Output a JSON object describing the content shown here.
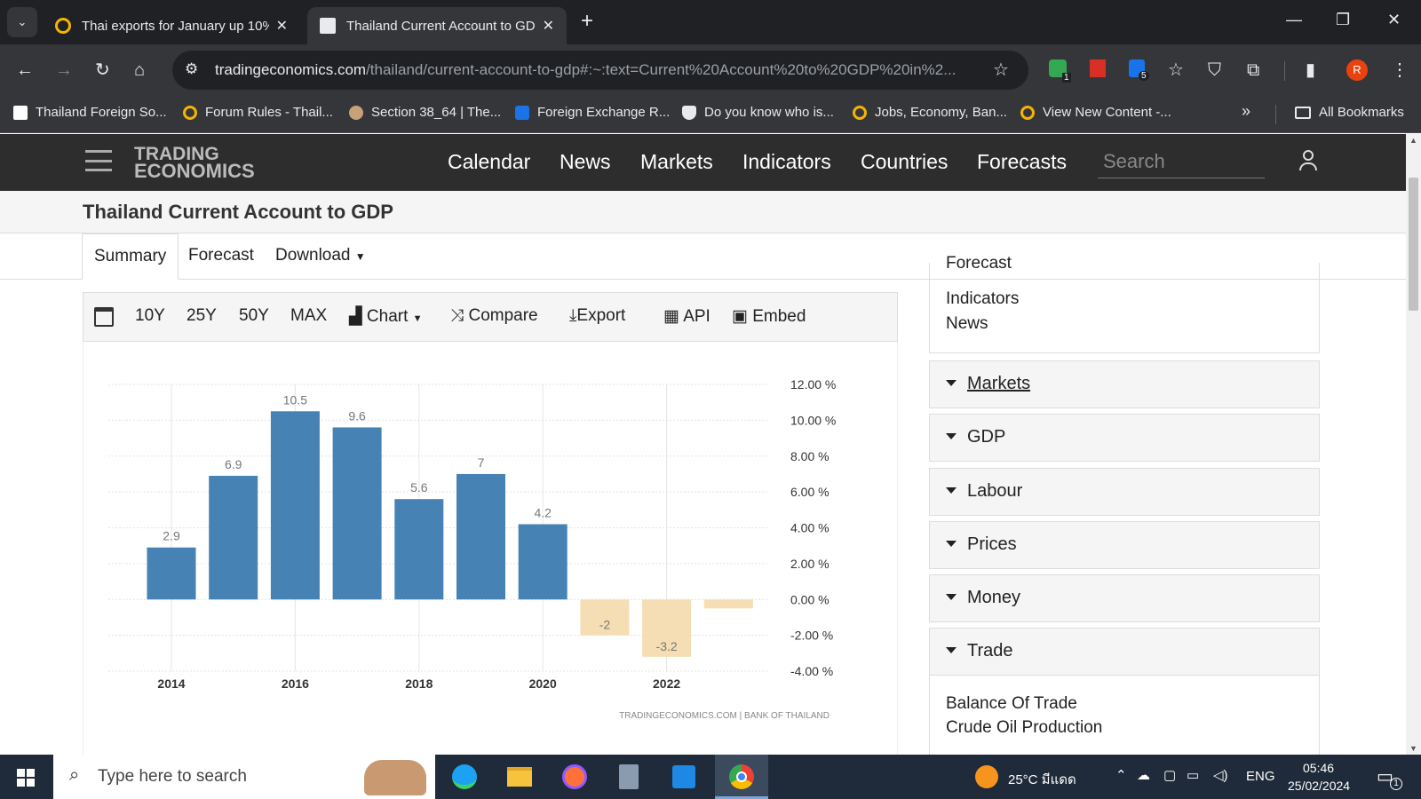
{
  "browser": {
    "tabs": [
      {
        "title": "Thai exports for January up 10%",
        "active": false
      },
      {
        "title": "Thailand Current Account to GD",
        "active": true
      }
    ],
    "new_tab": "+",
    "url_host": "tradingeconomics.com",
    "url_path": "/thailand/current-account-to-gdp#:~:text=Current%20Account%20to%20GDP%20in%2...",
    "extension_badges": [
      "1",
      "5"
    ],
    "profile_initial": "R",
    "bookmarks": [
      "Thailand Foreign So...",
      "Forum Rules - Thail...",
      "Section 38_64 | The...",
      "Foreign Exchange R...",
      "Do you know who is...",
      "Jobs, Economy, Ban...",
      "View New Content -..."
    ],
    "more_bookmarks": "»",
    "all_bookmarks": "All Bookmarks"
  },
  "site": {
    "logo_line1": "TRADING",
    "logo_line2": "ECONOMICS",
    "nav": [
      "Calendar",
      "News",
      "Markets",
      "Indicators",
      "Countries",
      "Forecasts"
    ],
    "search_placeholder": "Search",
    "page_title": "Thailand Current Account to GDP",
    "tabs": [
      "Summary",
      "Forecast",
      "Download"
    ],
    "chart_toolbar": [
      "10Y",
      "25Y",
      "50Y",
      "MAX",
      "Chart",
      "Compare",
      "Export",
      "API",
      "Embed"
    ],
    "source_note": "TRADINGECONOMICS.COM  |  BANK OF THAILAND"
  },
  "sidebar": {
    "top_links": [
      "Forecast",
      "Indicators",
      "News"
    ],
    "sections": [
      "Markets",
      "GDP",
      "Labour",
      "Prices",
      "Money",
      "Trade"
    ],
    "trade_links": [
      "Balance Of Trade",
      "Crude Oil Production"
    ]
  },
  "chart_data": {
    "type": "bar",
    "x": [
      2014,
      2015,
      2016,
      2017,
      2018,
      2019,
      2020,
      2021,
      2022,
      2023
    ],
    "values": [
      2.9,
      6.9,
      10.5,
      9.6,
      5.6,
      7,
      4.2,
      -2,
      -3.2,
      -0.5
    ],
    "data_labels": [
      "2.9",
      "6.9",
      "10.5",
      "9.6",
      "5.6",
      "7",
      "4.2",
      "-2",
      "-3.2",
      ""
    ],
    "x_tick_labels": [
      "2014",
      "2016",
      "2018",
      "2020",
      "2022"
    ],
    "y_tick_labels": [
      "12.00 %",
      "10.00 %",
      "8.00 %",
      "6.00 %",
      "4.00 %",
      "2.00 %",
      "0.00 %",
      "-2.00 %",
      "-4.00 %"
    ],
    "ylim": [
      -4,
      12
    ],
    "positive_color": "#4682b4",
    "negative_color": "#f5deb3",
    "grid": true
  },
  "taskbar": {
    "search_placeholder": "Type here to search",
    "weather": "25°C  มีแดด",
    "language": "ENG",
    "time": "05:46",
    "date": "25/02/2024",
    "notification_count": "1"
  }
}
